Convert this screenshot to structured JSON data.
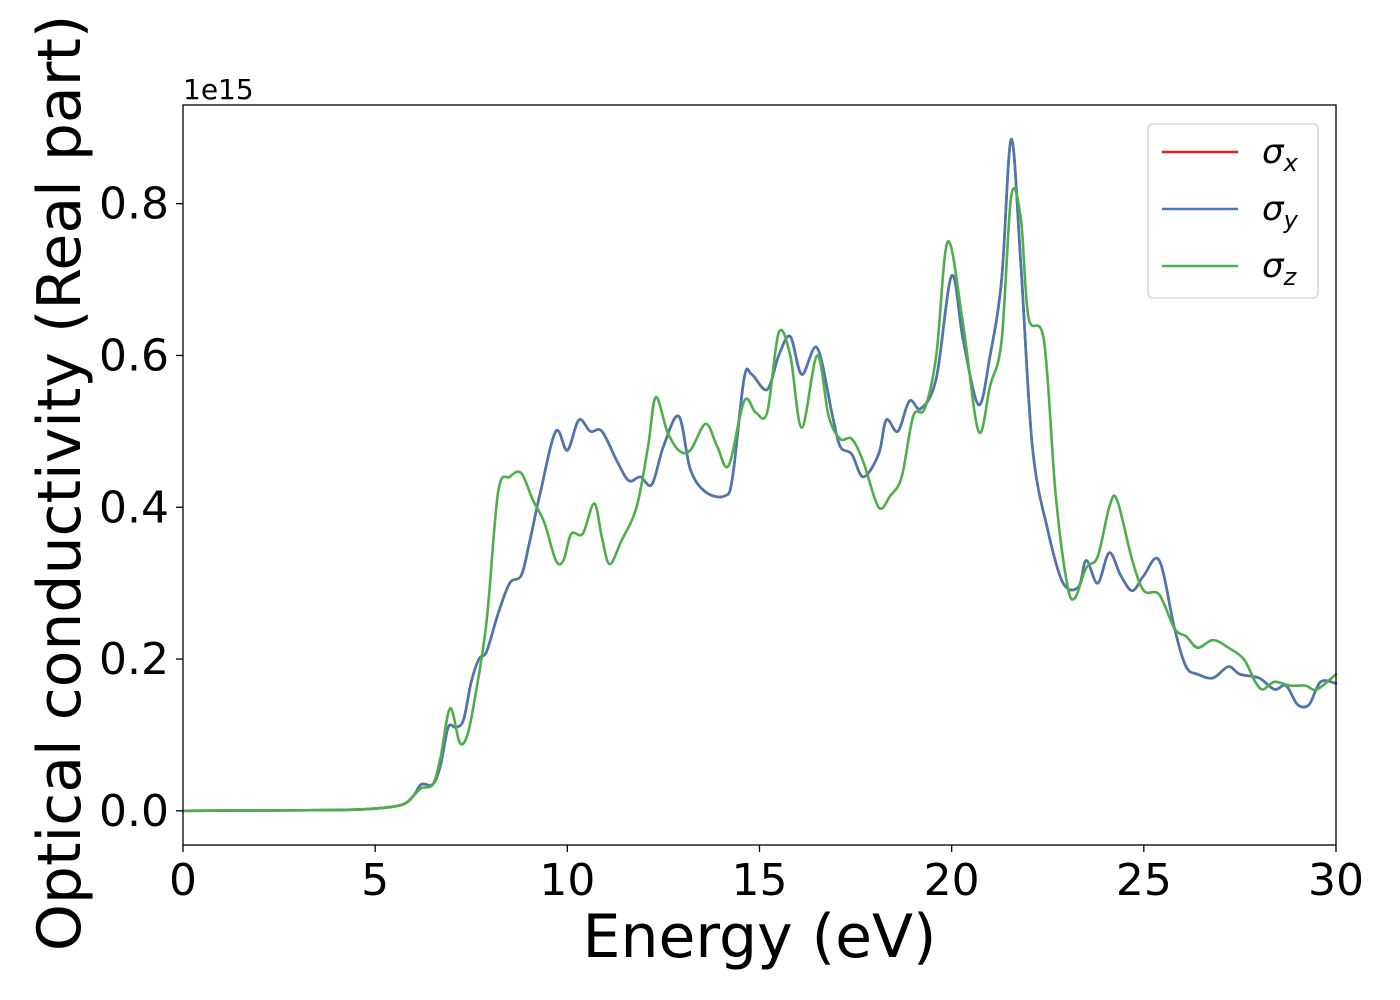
{
  "chart_data": {
    "type": "line",
    "title": "",
    "xlabel": "Energy (eV)",
    "ylabel": "Optical conductivity (Real part)",
    "y_offset_label": "1e15",
    "xlim": [
      0,
      30
    ],
    "ylim": [
      -0.045,
      0.93
    ],
    "x_ticks": [
      0,
      5,
      10,
      15,
      20,
      25,
      30
    ],
    "x_tick_labels": [
      "0",
      "5",
      "10",
      "15",
      "20",
      "25",
      "30"
    ],
    "y_ticks": [
      0.0,
      0.2,
      0.4,
      0.6,
      0.8
    ],
    "y_tick_labels": [
      "0.0",
      "0.2",
      "0.4",
      "0.6",
      "0.8"
    ],
    "grid": false,
    "legend_position": "top-right",
    "series": [
      {
        "name": "σx",
        "symbol": "σ",
        "subscript": "x",
        "color": "#e41a1c",
        "points": [
          [
            0,
            0
          ],
          [
            2,
            0.0005
          ],
          [
            4,
            0.001
          ],
          [
            5,
            0.003
          ],
          [
            5.7,
            0.008
          ],
          [
            6,
            0.02
          ],
          [
            6.2,
            0.035
          ],
          [
            6.5,
            0.035
          ],
          [
            6.7,
            0.06
          ],
          [
            6.9,
            0.11
          ],
          [
            7.1,
            0.11
          ],
          [
            7.3,
            0.12
          ],
          [
            7.5,
            0.17
          ],
          [
            7.7,
            0.2
          ],
          [
            7.9,
            0.21
          ],
          [
            8.2,
            0.26
          ],
          [
            8.5,
            0.3
          ],
          [
            8.8,
            0.31
          ],
          [
            9.0,
            0.35
          ],
          [
            9.3,
            0.42
          ],
          [
            9.7,
            0.5
          ],
          [
            10.0,
            0.475
          ],
          [
            10.3,
            0.515
          ],
          [
            10.6,
            0.5
          ],
          [
            10.9,
            0.5
          ],
          [
            11.3,
            0.46
          ],
          [
            11.6,
            0.435
          ],
          [
            11.9,
            0.44
          ],
          [
            12.2,
            0.43
          ],
          [
            12.5,
            0.48
          ],
          [
            12.9,
            0.52
          ],
          [
            13.2,
            0.45
          ],
          [
            13.6,
            0.42
          ],
          [
            14.1,
            0.415
          ],
          [
            14.3,
            0.44
          ],
          [
            14.6,
            0.57
          ],
          [
            14.8,
            0.575
          ],
          [
            15.2,
            0.555
          ],
          [
            15.5,
            0.6
          ],
          [
            15.8,
            0.625
          ],
          [
            16.1,
            0.575
          ],
          [
            16.5,
            0.61
          ],
          [
            16.9,
            0.52
          ],
          [
            17.1,
            0.48
          ],
          [
            17.4,
            0.47
          ],
          [
            17.7,
            0.44
          ],
          [
            18.1,
            0.47
          ],
          [
            18.3,
            0.515
          ],
          [
            18.6,
            0.5
          ],
          [
            18.9,
            0.54
          ],
          [
            19.2,
            0.53
          ],
          [
            19.6,
            0.57
          ],
          [
            20.0,
            0.705
          ],
          [
            20.3,
            0.62
          ],
          [
            20.7,
            0.535
          ],
          [
            21.0,
            0.6
          ],
          [
            21.3,
            0.7
          ],
          [
            21.55,
            0.885
          ],
          [
            21.8,
            0.72
          ],
          [
            22.1,
            0.48
          ],
          [
            22.5,
            0.37
          ],
          [
            22.9,
            0.3
          ],
          [
            23.3,
            0.295
          ],
          [
            23.5,
            0.33
          ],
          [
            23.8,
            0.3
          ],
          [
            24.1,
            0.34
          ],
          [
            24.4,
            0.31
          ],
          [
            24.7,
            0.29
          ],
          [
            25.0,
            0.31
          ],
          [
            25.4,
            0.33
          ],
          [
            25.8,
            0.24
          ],
          [
            26.1,
            0.19
          ],
          [
            26.4,
            0.18
          ],
          [
            26.8,
            0.175
          ],
          [
            27.2,
            0.19
          ],
          [
            27.5,
            0.18
          ],
          [
            28.0,
            0.175
          ],
          [
            28.4,
            0.16
          ],
          [
            28.7,
            0.165
          ],
          [
            29.0,
            0.14
          ],
          [
            29.3,
            0.14
          ],
          [
            29.6,
            0.17
          ],
          [
            30,
            0.168
          ]
        ]
      },
      {
        "name": "σy",
        "symbol": "σ",
        "subscript": "y",
        "color": "#4a78b0",
        "points": [
          [
            0,
            0
          ],
          [
            2,
            0.0005
          ],
          [
            4,
            0.001
          ],
          [
            5,
            0.003
          ],
          [
            5.7,
            0.008
          ],
          [
            6,
            0.02
          ],
          [
            6.2,
            0.035
          ],
          [
            6.5,
            0.035
          ],
          [
            6.7,
            0.06
          ],
          [
            6.9,
            0.11
          ],
          [
            7.1,
            0.11
          ],
          [
            7.3,
            0.12
          ],
          [
            7.5,
            0.17
          ],
          [
            7.7,
            0.2
          ],
          [
            7.9,
            0.21
          ],
          [
            8.2,
            0.26
          ],
          [
            8.5,
            0.3
          ],
          [
            8.8,
            0.31
          ],
          [
            9.0,
            0.35
          ],
          [
            9.3,
            0.42
          ],
          [
            9.7,
            0.5
          ],
          [
            10.0,
            0.475
          ],
          [
            10.3,
            0.515
          ],
          [
            10.6,
            0.5
          ],
          [
            10.9,
            0.5
          ],
          [
            11.3,
            0.46
          ],
          [
            11.6,
            0.435
          ],
          [
            11.9,
            0.44
          ],
          [
            12.2,
            0.43
          ],
          [
            12.5,
            0.48
          ],
          [
            12.9,
            0.52
          ],
          [
            13.2,
            0.45
          ],
          [
            13.6,
            0.42
          ],
          [
            14.1,
            0.415
          ],
          [
            14.3,
            0.44
          ],
          [
            14.6,
            0.57
          ],
          [
            14.8,
            0.575
          ],
          [
            15.2,
            0.555
          ],
          [
            15.5,
            0.6
          ],
          [
            15.8,
            0.625
          ],
          [
            16.1,
            0.575
          ],
          [
            16.5,
            0.61
          ],
          [
            16.9,
            0.52
          ],
          [
            17.1,
            0.48
          ],
          [
            17.4,
            0.47
          ],
          [
            17.7,
            0.44
          ],
          [
            18.1,
            0.47
          ],
          [
            18.3,
            0.515
          ],
          [
            18.6,
            0.5
          ],
          [
            18.9,
            0.54
          ],
          [
            19.2,
            0.53
          ],
          [
            19.6,
            0.57
          ],
          [
            20.0,
            0.705
          ],
          [
            20.3,
            0.62
          ],
          [
            20.7,
            0.535
          ],
          [
            21.0,
            0.6
          ],
          [
            21.3,
            0.7
          ],
          [
            21.55,
            0.885
          ],
          [
            21.8,
            0.72
          ],
          [
            22.1,
            0.48
          ],
          [
            22.5,
            0.37
          ],
          [
            22.9,
            0.3
          ],
          [
            23.3,
            0.295
          ],
          [
            23.5,
            0.33
          ],
          [
            23.8,
            0.3
          ],
          [
            24.1,
            0.34
          ],
          [
            24.4,
            0.31
          ],
          [
            24.7,
            0.29
          ],
          [
            25.0,
            0.31
          ],
          [
            25.4,
            0.33
          ],
          [
            25.8,
            0.24
          ],
          [
            26.1,
            0.19
          ],
          [
            26.4,
            0.18
          ],
          [
            26.8,
            0.175
          ],
          [
            27.2,
            0.19
          ],
          [
            27.5,
            0.18
          ],
          [
            28.0,
            0.175
          ],
          [
            28.4,
            0.16
          ],
          [
            28.7,
            0.165
          ],
          [
            29.0,
            0.14
          ],
          [
            29.3,
            0.14
          ],
          [
            29.6,
            0.17
          ],
          [
            30,
            0.168
          ]
        ]
      },
      {
        "name": "σz",
        "symbol": "σ",
        "subscript": "z",
        "color": "#4daf4a",
        "points": [
          [
            0,
            0
          ],
          [
            2,
            0.0005
          ],
          [
            4,
            0.001
          ],
          [
            5,
            0.003
          ],
          [
            5.7,
            0.008
          ],
          [
            6,
            0.02
          ],
          [
            6.2,
            0.03
          ],
          [
            6.5,
            0.035
          ],
          [
            6.7,
            0.07
          ],
          [
            6.95,
            0.135
          ],
          [
            7.2,
            0.09
          ],
          [
            7.4,
            0.1
          ],
          [
            7.6,
            0.15
          ],
          [
            7.9,
            0.25
          ],
          [
            8.2,
            0.42
          ],
          [
            8.5,
            0.44
          ],
          [
            8.8,
            0.445
          ],
          [
            9.1,
            0.41
          ],
          [
            9.4,
            0.38
          ],
          [
            9.7,
            0.33
          ],
          [
            9.9,
            0.33
          ],
          [
            10.1,
            0.365
          ],
          [
            10.4,
            0.365
          ],
          [
            10.7,
            0.405
          ],
          [
            10.9,
            0.36
          ],
          [
            11.1,
            0.325
          ],
          [
            11.4,
            0.355
          ],
          [
            11.8,
            0.4
          ],
          [
            12.1,
            0.48
          ],
          [
            12.3,
            0.545
          ],
          [
            12.6,
            0.5
          ],
          [
            12.9,
            0.475
          ],
          [
            13.2,
            0.475
          ],
          [
            13.6,
            0.51
          ],
          [
            13.9,
            0.48
          ],
          [
            14.2,
            0.455
          ],
          [
            14.6,
            0.54
          ],
          [
            14.9,
            0.525
          ],
          [
            15.2,
            0.525
          ],
          [
            15.5,
            0.63
          ],
          [
            15.8,
            0.6
          ],
          [
            16.1,
            0.505
          ],
          [
            16.5,
            0.6
          ],
          [
            16.8,
            0.52
          ],
          [
            17.1,
            0.49
          ],
          [
            17.4,
            0.49
          ],
          [
            17.7,
            0.46
          ],
          [
            18.1,
            0.4
          ],
          [
            18.4,
            0.415
          ],
          [
            18.7,
            0.44
          ],
          [
            19.0,
            0.52
          ],
          [
            19.3,
            0.53
          ],
          [
            19.6,
            0.6
          ],
          [
            19.9,
            0.75
          ],
          [
            20.3,
            0.64
          ],
          [
            20.7,
            0.5
          ],
          [
            21.0,
            0.56
          ],
          [
            21.3,
            0.62
          ],
          [
            21.55,
            0.81
          ],
          [
            21.8,
            0.78
          ],
          [
            22.0,
            0.65
          ],
          [
            22.4,
            0.62
          ],
          [
            22.7,
            0.42
          ],
          [
            23.0,
            0.3
          ],
          [
            23.2,
            0.28
          ],
          [
            23.5,
            0.32
          ],
          [
            23.8,
            0.335
          ],
          [
            24.1,
            0.4
          ],
          [
            24.3,
            0.41
          ],
          [
            24.7,
            0.33
          ],
          [
            25.0,
            0.29
          ],
          [
            25.4,
            0.285
          ],
          [
            25.8,
            0.24
          ],
          [
            26.1,
            0.23
          ],
          [
            26.4,
            0.215
          ],
          [
            26.8,
            0.225
          ],
          [
            27.2,
            0.215
          ],
          [
            27.6,
            0.2
          ],
          [
            27.9,
            0.17
          ],
          [
            28.1,
            0.16
          ],
          [
            28.4,
            0.17
          ],
          [
            28.8,
            0.165
          ],
          [
            29.2,
            0.165
          ],
          [
            29.5,
            0.16
          ],
          [
            30,
            0.18
          ]
        ]
      }
    ]
  }
}
